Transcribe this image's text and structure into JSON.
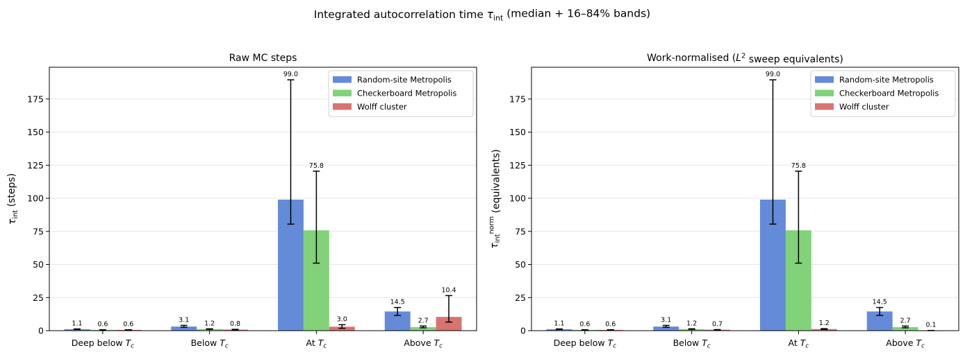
{
  "figure": {
    "suptitle": "Integrated autocorrelation time τ_int (median + 16–84% bands)"
  },
  "colors": {
    "Random-site Metropolis": "#648bd8",
    "Checkerboard Metropolis": "#82d27a",
    "Wolff cluster": "#d77472"
  },
  "chart_data": [
    {
      "type": "bar",
      "title": "Raw MC steps",
      "ylabel": "τ_int (steps)",
      "categories": [
        "Deep below T_c",
        "Below T_c",
        "At T_c",
        "Above T_c"
      ],
      "yticks": [
        0,
        25,
        50,
        75,
        100,
        125,
        150,
        175
      ],
      "ylim": [
        0,
        199
      ],
      "grid": "y",
      "legend": "top-right",
      "series": [
        {
          "name": "Random-site Metropolis",
          "values": [
            1.1,
            3.1,
            99.0,
            14.5
          ],
          "labels": [
            "1.1",
            "3.1",
            "99.0",
            "14.5"
          ],
          "err_low": [
            0.9,
            2.6,
            80.5,
            11.5
          ],
          "err_high": [
            1.3,
            4.0,
            189.5,
            17.5
          ]
        },
        {
          "name": "Checkerboard Metropolis",
          "values": [
            0.6,
            1.2,
            75.8,
            2.7
          ],
          "labels": [
            "0.6",
            "1.2",
            "75.8",
            "2.7"
          ],
          "err_low": [
            0.5,
            1.0,
            51.0,
            2.2
          ],
          "err_high": [
            0.7,
            1.4,
            120.5,
            3.5
          ]
        },
        {
          "name": "Wolff cluster",
          "values": [
            0.6,
            0.8,
            3.0,
            10.4
          ],
          "labels": [
            "0.6",
            "0.8",
            "3.0",
            "10.4"
          ],
          "err_low": [
            0.5,
            0.6,
            1.8,
            6.5
          ],
          "err_high": [
            0.7,
            1.0,
            4.5,
            26.5
          ]
        }
      ]
    },
    {
      "type": "bar",
      "title": "Work-normalised (L^2 sweep equivalents)",
      "ylabel": "τ_int^norm (equivalents)",
      "categories": [
        "Deep below T_c",
        "Below T_c",
        "At T_c",
        "Above T_c"
      ],
      "yticks": [
        0,
        25,
        50,
        75,
        100,
        125,
        150,
        175
      ],
      "ylim": [
        0,
        199
      ],
      "grid": "y",
      "legend": "top-right",
      "series": [
        {
          "name": "Random-site Metropolis",
          "values": [
            1.1,
            3.1,
            99.0,
            14.5
          ],
          "labels": [
            "1.1",
            "3.1",
            "99.0",
            "14.5"
          ],
          "err_low": [
            0.9,
            2.6,
            80.5,
            11.5
          ],
          "err_high": [
            1.3,
            4.0,
            189.5,
            17.5
          ]
        },
        {
          "name": "Checkerboard Metropolis",
          "values": [
            0.6,
            1.2,
            75.8,
            2.7
          ],
          "labels": [
            "0.6",
            "1.2",
            "75.8",
            "2.7"
          ],
          "err_low": [
            0.5,
            1.0,
            51.0,
            2.2
          ],
          "err_high": [
            0.7,
            1.4,
            120.5,
            3.5
          ]
        },
        {
          "name": "Wolff cluster",
          "values": [
            0.6,
            0.7,
            1.2,
            0.1
          ],
          "labels": [
            "0.6",
            "0.7",
            "1.2",
            "0.1"
          ],
          "err_low": [
            0.5,
            0.6,
            0.9,
            0.05
          ],
          "err_high": [
            0.7,
            0.8,
            1.5,
            0.15
          ]
        }
      ]
    }
  ]
}
